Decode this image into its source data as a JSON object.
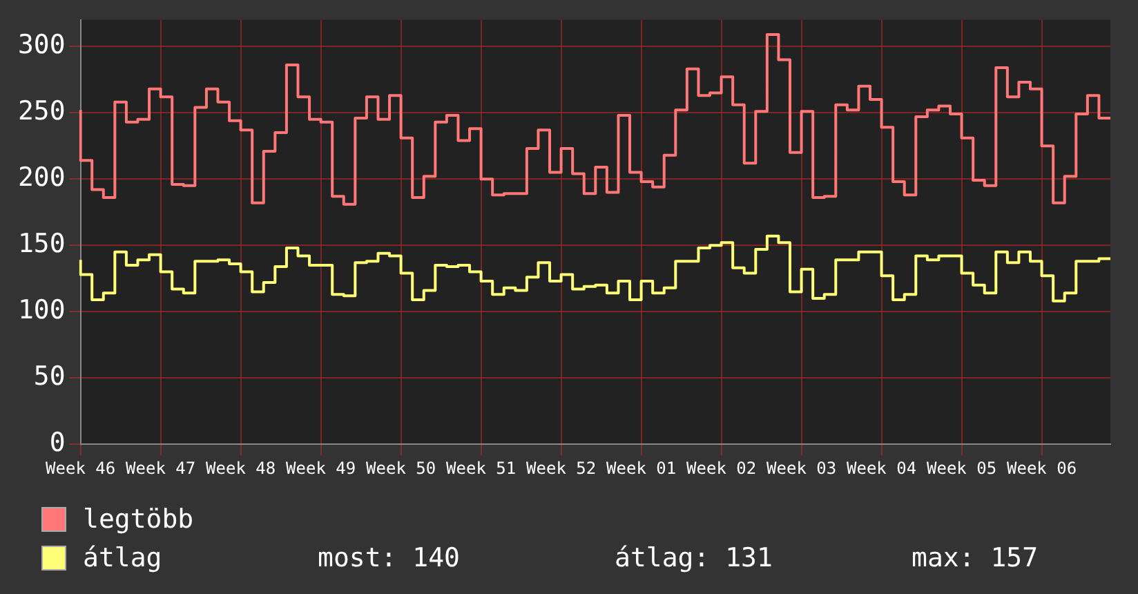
{
  "chart_data": {
    "type": "step",
    "categories": [
      "Week 46",
      null,
      null,
      null,
      null,
      null,
      null,
      "Week 47",
      null,
      null,
      null,
      null,
      null,
      null,
      "Week 48",
      null,
      null,
      null,
      null,
      null,
      null,
      "Week 49",
      null,
      null,
      null,
      null,
      null,
      null,
      "Week 50",
      null,
      null,
      null,
      null,
      null,
      null,
      "Week 51",
      null,
      null,
      null,
      null,
      null,
      null,
      "Week 52",
      null,
      null,
      null,
      null,
      null,
      null,
      "Week 01",
      null,
      null,
      null,
      null,
      null,
      null,
      "Week 02",
      null,
      null,
      null,
      null,
      null,
      null,
      "Week 03",
      null,
      null,
      null,
      null,
      null,
      null,
      "Week 04",
      null,
      null,
      null,
      null,
      null,
      null,
      "Week 05",
      null,
      null,
      null,
      null,
      null,
      null,
      "Week 06",
      null,
      null,
      null,
      null,
      null,
      null
    ],
    "ylim": [
      0,
      320
    ],
    "yticks": [
      0,
      50,
      100,
      150,
      200,
      250,
      300
    ],
    "grid": true,
    "legend": "bottom left",
    "series": [
      {
        "name": "legtöbb",
        "color": "#ff7777",
        "values": [
          252,
          214,
          192,
          186,
          258,
          243,
          245,
          268,
          262,
          196,
          195,
          254,
          268,
          258,
          244,
          237,
          182,
          221,
          235,
          286,
          262,
          245,
          243,
          187,
          181,
          246,
          262,
          245,
          263,
          231,
          186,
          202,
          243,
          248,
          229,
          238,
          200,
          188,
          189,
          189,
          223,
          237,
          205,
          223,
          204,
          189,
          209,
          190,
          248,
          205,
          198,
          194,
          218,
          252,
          283,
          263,
          265,
          277,
          256,
          212,
          251,
          309,
          290,
          220,
          251,
          186,
          187,
          256,
          252,
          270,
          260,
          239,
          198,
          188,
          247,
          252,
          255,
          249,
          231,
          199,
          195,
          284,
          262,
          273,
          268,
          225,
          182,
          202,
          249,
          263,
          246
        ]
      },
      {
        "name": "átlag",
        "color": "#ffff77",
        "values": [
          139,
          128,
          109,
          114,
          145,
          135,
          139,
          143,
          130,
          117,
          114,
          138,
          138,
          139,
          136,
          130,
          115,
          122,
          134,
          148,
          142,
          135,
          135,
          113,
          112,
          137,
          138,
          144,
          142,
          129,
          109,
          116,
          135,
          134,
          135,
          130,
          123,
          113,
          118,
          116,
          126,
          137,
          123,
          128,
          117,
          119,
          120,
          114,
          123,
          109,
          123,
          114,
          118,
          138,
          138,
          148,
          150,
          152,
          133,
          129,
          147,
          157,
          152,
          115,
          132,
          110,
          113,
          139,
          139,
          145,
          145,
          127,
          109,
          113,
          142,
          139,
          142,
          142,
          129,
          120,
          114,
          145,
          137,
          145,
          138,
          127,
          108,
          114,
          138,
          138,
          140
        ]
      }
    ],
    "annotations": [
      "most: 140",
      "átlag: 131",
      "max: 157"
    ]
  }
}
